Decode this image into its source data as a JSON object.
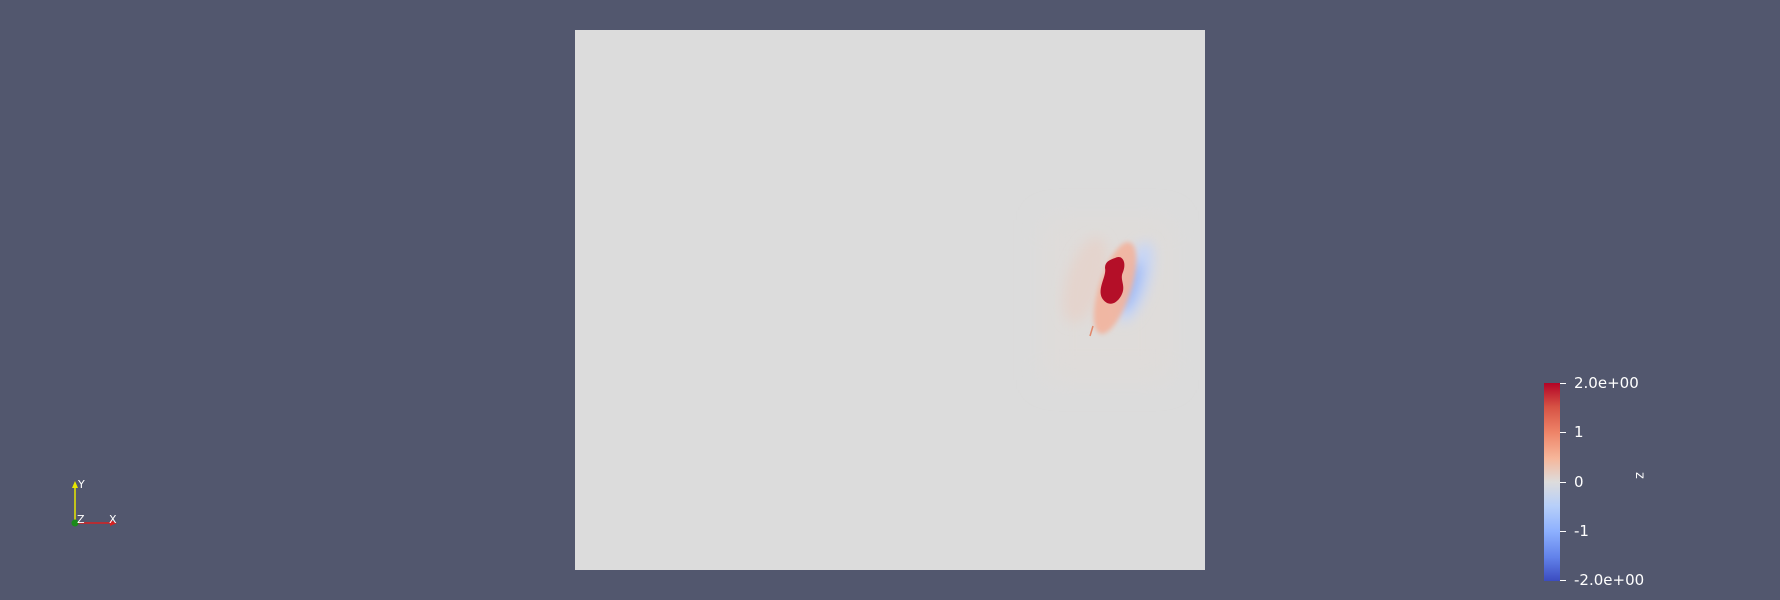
{
  "viewport": {
    "background_color": "#52576e",
    "plane_color": "#dcdcdc"
  },
  "axes": {
    "x_label": "X",
    "y_label": "Y",
    "z_label": "Z",
    "x_color": "#d62020",
    "y_color": "#e8e800",
    "z_color": "#1a8a1a"
  },
  "colorbar": {
    "title": "z",
    "colormap": "cool-to-warm",
    "max_label": "2.0e+00",
    "min_label": "-2.0e+00",
    "tick_labels": [
      "2.0e+00",
      "1",
      "0",
      "-1",
      "-2.0e+00"
    ],
    "range": [
      -2.0,
      2.0
    ],
    "max_color": "#b40426",
    "mid_color": "#dddcdc",
    "min_color": "#3b4cc0"
  }
}
